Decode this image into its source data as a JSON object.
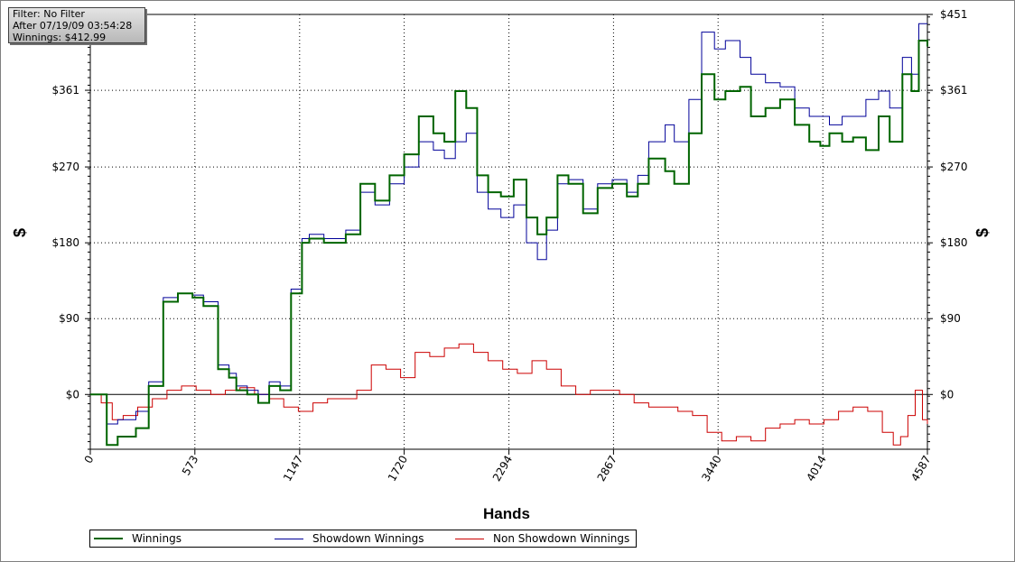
{
  "info_box": {
    "filter": "Filter: No Filter",
    "after": "After 07/19/09 03:54:28",
    "winnings": "Winnings: $412.99"
  },
  "legend": {
    "winnings": "Winnings",
    "showdown": "Showdown Winnings",
    "non_showdown": "Non Showdown Winnings"
  },
  "colors": {
    "winnings": "#006400",
    "showdown": "#000099",
    "non_showdown": "#cc0000",
    "grid": "#000000",
    "zero_line": "#000000"
  },
  "chart_data": {
    "type": "line",
    "xlabel": "Hands",
    "ylabel": "$",
    "xlim": [
      0,
      4587
    ],
    "ylim": [
      -65,
      451
    ],
    "x_ticks": [
      0,
      573,
      1147,
      1720,
      2294,
      2867,
      3440,
      4014,
      4587
    ],
    "x_tick_labels": [
      "0",
      "573",
      "1147",
      "1720",
      "2294",
      "2867",
      "3440",
      "4014",
      "4587"
    ],
    "y_ticks": [
      0,
      90,
      180,
      270,
      361,
      451
    ],
    "y_tick_labels": [
      "$0",
      "$90",
      "$180",
      "$270",
      "$361",
      "$451"
    ],
    "grid": true,
    "legend_position": "bottom",
    "series": [
      {
        "name": "Winnings",
        "x": [
          0,
          60,
          90,
          150,
          250,
          320,
          400,
          480,
          560,
          620,
          700,
          760,
          800,
          860,
          920,
          980,
          1040,
          1100,
          1160,
          1200,
          1280,
          1400,
          1480,
          1560,
          1640,
          1720,
          1800,
          1880,
          1940,
          2000,
          2060,
          2120,
          2180,
          2250,
          2320,
          2390,
          2450,
          2500,
          2560,
          2620,
          2700,
          2780,
          2860,
          2940,
          3000,
          3060,
          3150,
          3200,
          3280,
          3350,
          3420,
          3480,
          3560,
          3620,
          3700,
          3780,
          3860,
          3940,
          4000,
          4050,
          4120,
          4180,
          4250,
          4320,
          4380,
          4450,
          4500,
          4540,
          4587
        ],
        "y": [
          0,
          0,
          -60,
          -50,
          -40,
          10,
          110,
          120,
          115,
          105,
          30,
          20,
          5,
          0,
          -10,
          10,
          5,
          120,
          180,
          185,
          180,
          190,
          250,
          230,
          260,
          285,
          330,
          310,
          300,
          360,
          340,
          260,
          240,
          235,
          255,
          210,
          190,
          210,
          260,
          250,
          215,
          245,
          250,
          235,
          250,
          280,
          265,
          250,
          310,
          380,
          350,
          360,
          365,
          330,
          340,
          350,
          320,
          300,
          295,
          310,
          300,
          305,
          290,
          330,
          300,
          380,
          360,
          420,
          412.99
        ]
      },
      {
        "name": "Showdown Winnings",
        "x": [
          0,
          60,
          90,
          150,
          250,
          320,
          400,
          480,
          560,
          620,
          700,
          760,
          800,
          860,
          920,
          980,
          1040,
          1100,
          1160,
          1200,
          1280,
          1400,
          1480,
          1560,
          1640,
          1720,
          1800,
          1880,
          1940,
          2000,
          2060,
          2120,
          2180,
          2250,
          2320,
          2390,
          2450,
          2500,
          2560,
          2620,
          2700,
          2780,
          2860,
          2940,
          3000,
          3060,
          3150,
          3200,
          3280,
          3350,
          3420,
          3480,
          3560,
          3620,
          3700,
          3780,
          3860,
          3940,
          4000,
          4050,
          4120,
          4180,
          4250,
          4320,
          4380,
          4450,
          4500,
          4540,
          4587
        ],
        "y": [
          0,
          0,
          -35,
          -30,
          -20,
          15,
          115,
          120,
          118,
          110,
          35,
          25,
          10,
          5,
          0,
          15,
          10,
          125,
          185,
          190,
          185,
          195,
          240,
          225,
          250,
          270,
          300,
          290,
          280,
          300,
          310,
          240,
          220,
          210,
          225,
          180,
          160,
          195,
          250,
          255,
          220,
          250,
          255,
          240,
          260,
          300,
          320,
          300,
          350,
          430,
          410,
          420,
          400,
          380,
          370,
          365,
          340,
          330,
          330,
          320,
          330,
          330,
          350,
          360,
          340,
          400,
          380,
          440,
          440
        ]
      },
      {
        "name": "Non Showdown Winnings",
        "x": [
          0,
          60,
          120,
          180,
          260,
          340,
          420,
          500,
          580,
          660,
          740,
          820,
          900,
          980,
          1060,
          1140,
          1220,
          1300,
          1380,
          1460,
          1540,
          1620,
          1700,
          1780,
          1860,
          1940,
          2020,
          2100,
          2180,
          2260,
          2340,
          2420,
          2500,
          2580,
          2660,
          2740,
          2820,
          2900,
          2980,
          3060,
          3140,
          3220,
          3300,
          3380,
          3460,
          3540,
          3620,
          3700,
          3780,
          3860,
          3940,
          4020,
          4100,
          4180,
          4260,
          4340,
          4400,
          4440,
          4480,
          4520,
          4560,
          4587
        ],
        "y": [
          0,
          -10,
          -30,
          -25,
          -15,
          -5,
          5,
          10,
          5,
          0,
          5,
          8,
          0,
          -5,
          -15,
          -20,
          -10,
          -5,
          -5,
          5,
          35,
          30,
          20,
          50,
          45,
          55,
          60,
          50,
          40,
          30,
          25,
          40,
          30,
          10,
          0,
          5,
          5,
          0,
          -10,
          -15,
          -15,
          -20,
          -25,
          -45,
          -55,
          -50,
          -55,
          -40,
          -35,
          -30,
          -35,
          -30,
          -20,
          -15,
          -20,
          -45,
          -60,
          -50,
          -25,
          5,
          -30,
          -35
        ]
      }
    ]
  }
}
